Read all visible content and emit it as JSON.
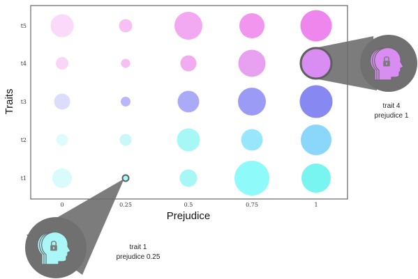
{
  "chart_data": {
    "type": "scatter",
    "xlabel": "Prejudice",
    "ylabel": "Traits",
    "x_categories": [
      "0",
      "0.25",
      "0.5",
      "0.75",
      "1"
    ],
    "y_categories": [
      "t1",
      "t2",
      "t3",
      "t4",
      "t5"
    ],
    "points": [
      {
        "trait": "t1",
        "prejudice": "0",
        "size": 0.56,
        "color": "#d9fbfb"
      },
      {
        "trait": "t1",
        "prejudice": "0.25",
        "size": 0.12,
        "color": "#7ff4f4"
      },
      {
        "trait": "t1",
        "prejudice": "0.5",
        "size": 0.5,
        "color": "#a7f7f7"
      },
      {
        "trait": "t1",
        "prejudice": "0.75",
        "size": 1.0,
        "color": "#8ffafa"
      },
      {
        "trait": "t1",
        "prejudice": "1",
        "size": 0.84,
        "color": "#78f5f0"
      },
      {
        "trait": "t2",
        "prejudice": "0",
        "size": 0.34,
        "color": "#ddfcfb"
      },
      {
        "trait": "t2",
        "prejudice": "0.25",
        "size": 0.34,
        "color": "#c9f8f8"
      },
      {
        "trait": "t2",
        "prejudice": "0.5",
        "size": 0.66,
        "color": "#a6f7f5"
      },
      {
        "trait": "t2",
        "prejudice": "0.75",
        "size": 0.62,
        "color": "#97e6fb"
      },
      {
        "trait": "t2",
        "prejudice": "1",
        "size": 0.88,
        "color": "#8bd6fb"
      },
      {
        "trait": "t3",
        "prejudice": "0",
        "size": 0.46,
        "color": "#dcdcfb"
      },
      {
        "trait": "t3",
        "prejudice": "0.25",
        "size": 0.28,
        "color": "#b8b8f8"
      },
      {
        "trait": "t3",
        "prejudice": "0.5",
        "size": 0.62,
        "color": "#aaaaf7"
      },
      {
        "trait": "t3",
        "prejudice": "0.75",
        "size": 0.8,
        "color": "#9b9bf6"
      },
      {
        "trait": "t3",
        "prejudice": "1",
        "size": 0.94,
        "color": "#8888f2"
      },
      {
        "trait": "t4",
        "prejudice": "0",
        "size": 0.36,
        "color": "#f9d6f8"
      },
      {
        "trait": "t4",
        "prejudice": "0.25",
        "size": 0.26,
        "color": "#f4c0f3"
      },
      {
        "trait": "t4",
        "prejudice": "0.5",
        "size": 0.46,
        "color": "#f1acf0"
      },
      {
        "trait": "t4",
        "prejudice": "0.75",
        "size": 0.78,
        "color": "#e7a1f0"
      },
      {
        "trait": "t4",
        "prejudice": "1",
        "size": 0.8,
        "color": "#d98cf2"
      },
      {
        "trait": "t5",
        "prejudice": "0",
        "size": 0.66,
        "color": "#fbd9fa"
      },
      {
        "trait": "t5",
        "prejudice": "0.25",
        "size": 0.38,
        "color": "#f6c0f4"
      },
      {
        "trait": "t5",
        "prejudice": "0.5",
        "size": 0.8,
        "color": "#f3a9f2"
      },
      {
        "trait": "t5",
        "prejudice": "0.75",
        "size": 0.72,
        "color": "#f295ef"
      },
      {
        "trait": "t5",
        "prejudice": "1",
        "size": 0.9,
        "color": "#ef86ed"
      }
    ]
  },
  "callouts": [
    {
      "line1": "trait 1",
      "line2": "prejudice 0.25",
      "color": "#a9f7f7",
      "target_trait": "t1",
      "target_prejudice": "0.25"
    },
    {
      "line1": "trait 4",
      "line2": "prejudice 1",
      "color": "#d98cf2",
      "target_trait": "t4",
      "target_prejudice": "1"
    }
  ]
}
